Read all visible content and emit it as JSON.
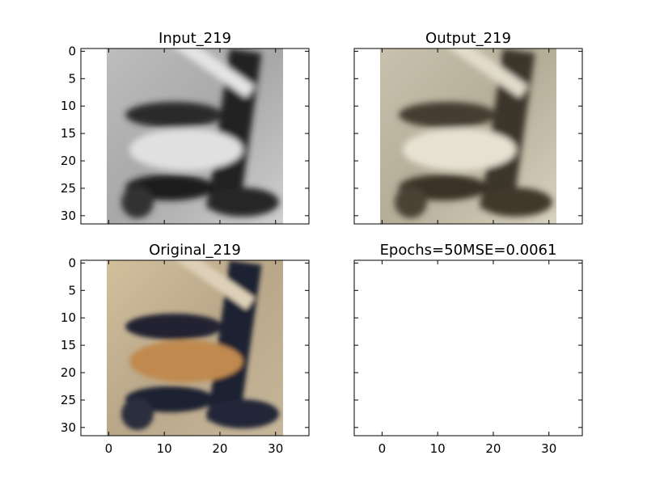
{
  "chart_data": [
    {
      "type": "image",
      "title": "Input_219",
      "xlim": [
        -5,
        36
      ],
      "ylim": [
        31.5,
        -0.5
      ],
      "xticks": [
        0,
        10,
        20,
        30
      ],
      "yticks": [
        0,
        5,
        10,
        15,
        20,
        25,
        30
      ],
      "image_extent": [
        -0.5,
        31.5
      ],
      "image_kind": "grayscale"
    },
    {
      "type": "image",
      "title": "Output_219",
      "xlim": [
        -5,
        36
      ],
      "ylim": [
        31.5,
        -0.5
      ],
      "xticks": [
        0,
        10,
        20,
        30
      ],
      "yticks": [
        0,
        5,
        10,
        15,
        20,
        25,
        30
      ],
      "image_extent": [
        -0.5,
        31.5
      ],
      "image_kind": "reconstruction"
    },
    {
      "type": "image",
      "title": "Original_219",
      "xlim": [
        -5,
        36
      ],
      "ylim": [
        31.5,
        -0.5
      ],
      "xticks": [
        0,
        10,
        20,
        30
      ],
      "yticks": [
        0,
        5,
        10,
        15,
        20,
        25,
        30
      ],
      "image_extent": [
        -0.5,
        31.5
      ],
      "image_kind": "color"
    },
    {
      "type": "image",
      "title": "Epochs=50MSE=0.0061",
      "xlim": [
        -5,
        36
      ],
      "ylim": [
        31.5,
        -0.5
      ],
      "xticks": [
        0,
        10,
        20,
        30
      ],
      "yticks": [
        0,
        5,
        10,
        15,
        20,
        25,
        30
      ],
      "image_extent": null,
      "image_kind": "empty"
    }
  ],
  "colors": {
    "input_light": "#c8c8c8",
    "input_dark": "#1a1a1a",
    "output_light": "#d8d2c0",
    "output_dark": "#3a3328",
    "original_light": "#cdbb9a",
    "original_dark": "#1e2230",
    "original_tan": "#c08a50"
  }
}
